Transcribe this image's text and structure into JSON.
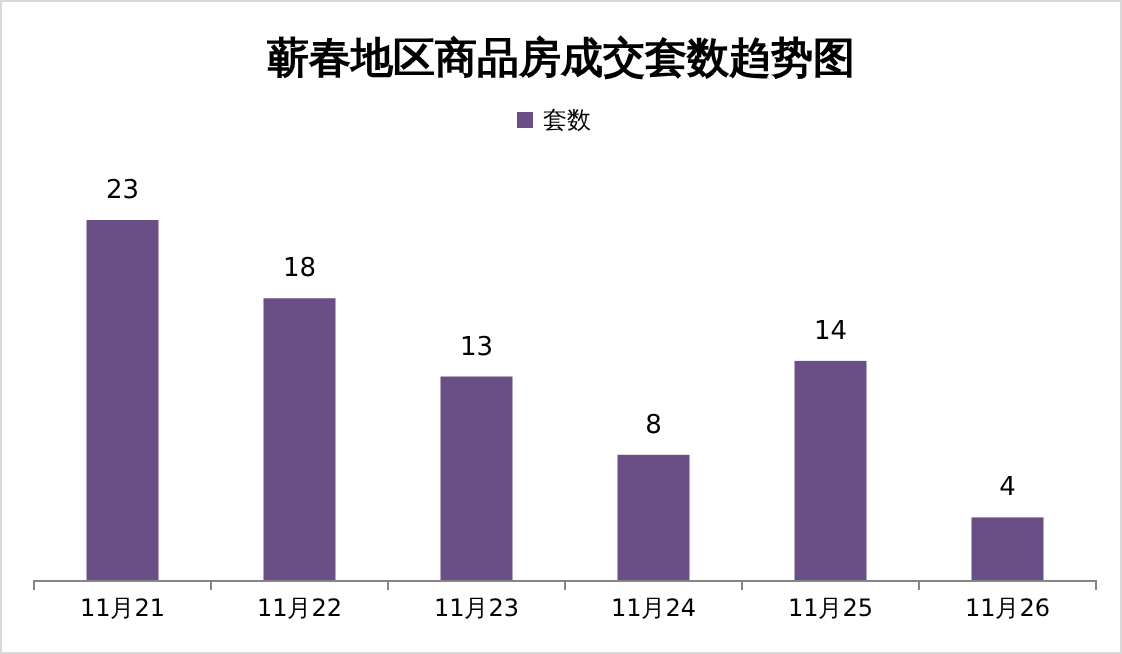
{
  "chart_data": {
    "type": "bar",
    "title": "蕲春地区商品房成交套数趋势图",
    "categories": [
      "11月21",
      "11月22",
      "11月23",
      "11月24",
      "11月25",
      "11月26"
    ],
    "series": [
      {
        "name": "套数",
        "color": "#6a4f86",
        "values": [
          23,
          18,
          13,
          8,
          14,
          4
        ]
      }
    ],
    "data_labels": true,
    "legend": "top"
  }
}
